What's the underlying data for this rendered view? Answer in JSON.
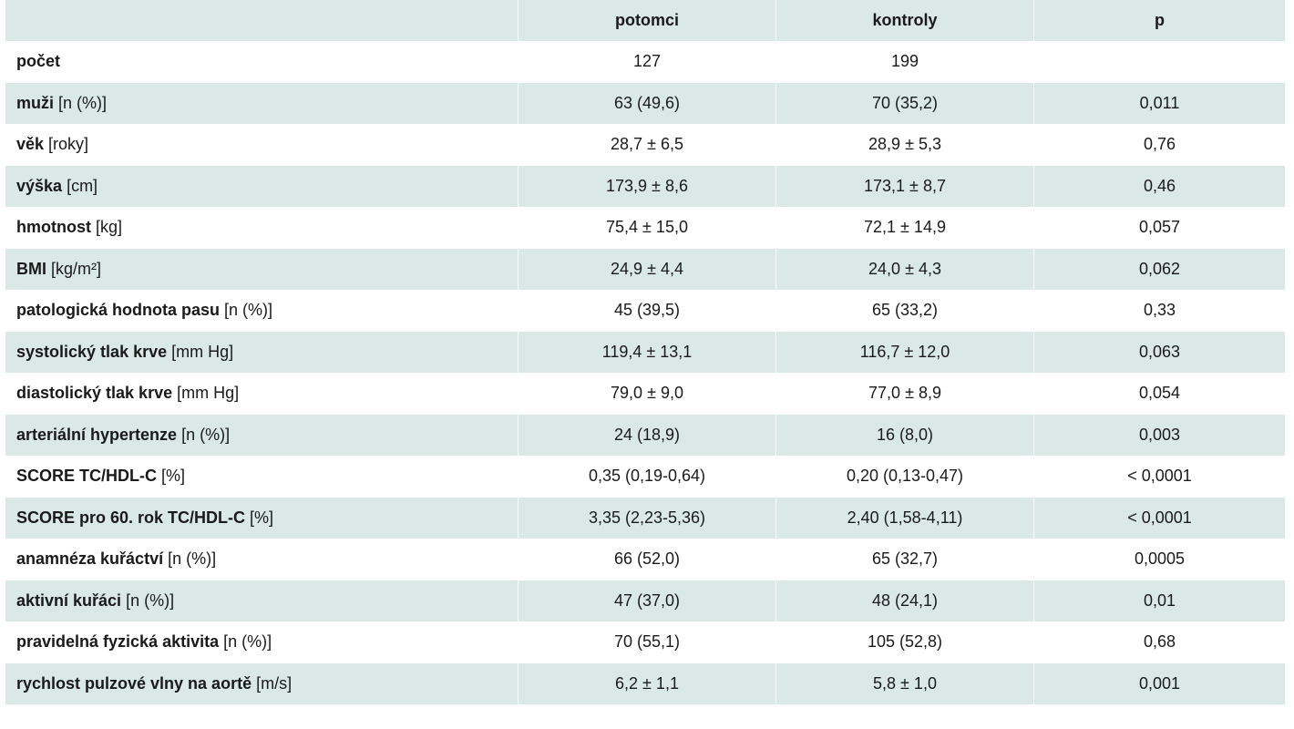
{
  "header": {
    "col0": "",
    "col1": "potomci",
    "col2": "kontroly",
    "col3": "p"
  },
  "rows": [
    {
      "label": "počet",
      "unit": "",
      "potomci": "127",
      "kontroly": "199",
      "p": ""
    },
    {
      "label": "muži",
      "unit": "[n (%)]",
      "potomci": "63 (49,6)",
      "kontroly": "70 (35,2)",
      "p": "0,011"
    },
    {
      "label": "věk",
      "unit": "[roky]",
      "potomci": "28,7 ± 6,5",
      "kontroly": "28,9 ± 5,3",
      "p": "0,76"
    },
    {
      "label": "výška",
      "unit": "[cm]",
      "potomci": "173,9 ± 8,6",
      "kontroly": "173,1 ± 8,7",
      "p": "0,46"
    },
    {
      "label": "hmotnost",
      "unit": "[kg]",
      "potomci": "75,4 ± 15,0",
      "kontroly": "72,1 ± 14,9",
      "p": "0,057"
    },
    {
      "label": "BMI",
      "unit": "[kg/m²]",
      "potomci": "24,9 ± 4,4",
      "kontroly": "24,0 ± 4,3",
      "p": "0,062"
    },
    {
      "label": "patologická hodnota pasu",
      "unit": "[n (%)]",
      "potomci": "45 (39,5)",
      "kontroly": "65 (33,2)",
      "p": "0,33"
    },
    {
      "label": "systolický tlak krve",
      "unit": "[mm Hg]",
      "potomci": "119,4 ± 13,1",
      "kontroly": "116,7 ± 12,0",
      "p": "0,063"
    },
    {
      "label": "diastolický tlak krve",
      "unit": "[mm Hg]",
      "potomci": "79,0 ± 9,0",
      "kontroly": "77,0 ± 8,9",
      "p": "0,054"
    },
    {
      "label": "arteriální hypertenze",
      "unit": "[n (%)]",
      "potomci": "24 (18,9)",
      "kontroly": "16 (8,0)",
      "p": "0,003"
    },
    {
      "label": "SCORE TC/HDL-C",
      "unit": "[%]",
      "potomci": "0,35 (0,19-0,64)",
      "kontroly": "0,20 (0,13-0,47)",
      "p": "< 0,0001"
    },
    {
      "label": "SCORE pro 60. rok TC/HDL-C",
      "unit": "[%]",
      "potomci": "3,35 (2,23-5,36)",
      "kontroly": "2,40 (1,58-4,11)",
      "p": "< 0,0001"
    },
    {
      "label": "anamnéza kuřáctví",
      "unit": "[n (%)]",
      "potomci": "66 (52,0)",
      "kontroly": "65 (32,7)",
      "p": "0,0005"
    },
    {
      "label": "aktivní kuřáci",
      "unit": "[n (%)]",
      "potomci": "47 (37,0)",
      "kontroly": "48 (24,1)",
      "p": "0,01"
    },
    {
      "label": "pravidelná fyzická aktivita",
      "unit": "[n (%)]",
      "potomci": "70 (55,1)",
      "kontroly": "105 (52,8)",
      "p": "0,68"
    },
    {
      "label": "rychlost pulzové vlny na aortě",
      "unit": "[m/s]",
      "potomci": "6,2 ± 1,1",
      "kontroly": "5,8 ± 1,0",
      "p": "0,001"
    }
  ],
  "colors": {
    "band": "#dbe9e6",
    "white": "#ffffff",
    "text": "#1a1a1a"
  }
}
